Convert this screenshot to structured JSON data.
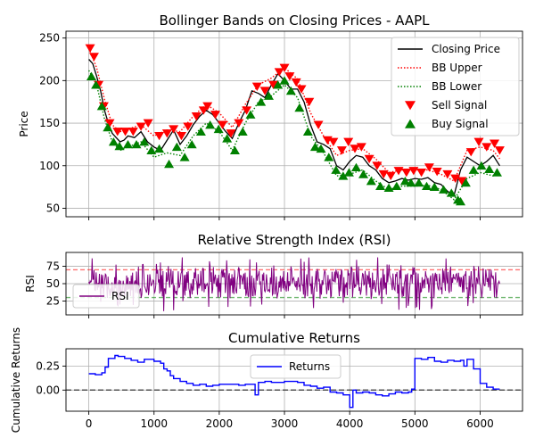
{
  "chart_data": [
    {
      "type": "line",
      "title": "Bollinger Bands on Closing Prices - AAPL",
      "xlabel": "",
      "ylabel": "Price",
      "xlim": [
        -350,
        6650
      ],
      "ylim": [
        40,
        258
      ],
      "x_ticks": [
        0,
        1000,
        2000,
        3000,
        4000,
        5000,
        6000
      ],
      "y_ticks": [
        50,
        100,
        150,
        200,
        250
      ],
      "grid": true,
      "legend_position": "top-right",
      "series": [
        {
          "name": "Closing Price",
          "color": "#000000",
          "style": "solid",
          "x": [
            0,
            60,
            120,
            180,
            240,
            300,
            360,
            420,
            480,
            540,
            600,
            700,
            800,
            900,
            1000,
            1100,
            1200,
            1300,
            1400,
            1500,
            1600,
            1700,
            1800,
            1900,
            2000,
            2100,
            2200,
            2300,
            2400,
            2500,
            2600,
            2700,
            2800,
            2900,
            3000,
            3100,
            3200,
            3300,
            3400,
            3500,
            3600,
            3700,
            3800,
            3900,
            4000,
            4100,
            4200,
            4300,
            4400,
            4500,
            4600,
            4700,
            4800,
            4900,
            5000,
            5100,
            5200,
            5300,
            5400,
            5500,
            5600,
            5700,
            5800,
            5900,
            6000,
            6100,
            6200,
            6300
          ],
          "y": [
            225,
            220,
            205,
            188,
            165,
            150,
            138,
            133,
            128,
            130,
            135,
            133,
            140,
            128,
            122,
            118,
            130,
            142,
            125,
            135,
            148,
            158,
            165,
            160,
            150,
            140,
            132,
            150,
            165,
            188,
            185,
            180,
            195,
            208,
            200,
            190,
            190,
            175,
            148,
            128,
            125,
            120,
            100,
            95,
            105,
            112,
            110,
            100,
            95,
            85,
            80,
            82,
            85,
            83,
            85,
            84,
            86,
            80,
            78,
            70,
            65,
            95,
            110,
            105,
            100,
            105,
            112,
            100
          ]
        },
        {
          "name": "BB Upper",
          "color": "#ff0000",
          "style": "dotted",
          "x": [
            0,
            120,
            240,
            360,
            480,
            600,
            800,
            1000,
            1200,
            1400,
            1600,
            1800,
            2000,
            2200,
            2400,
            2600,
            2800,
            3000,
            3200,
            3400,
            3600,
            3800,
            4000,
            4200,
            4400,
            4600,
            4800,
            5000,
            5200,
            5400,
            5600,
            5800,
            6000,
            6200,
            6300
          ],
          "y": [
            238,
            215,
            178,
            148,
            140,
            143,
            148,
            135,
            142,
            140,
            158,
            172,
            162,
            145,
            172,
            195,
            203,
            215,
            202,
            162,
            135,
            112,
            118,
            120,
            108,
            92,
            95,
            95,
            95,
            90,
            82,
            118,
            122,
            118,
            108
          ]
        },
        {
          "name": "BB Lower",
          "color": "#008000",
          "style": "dotted",
          "x": [
            0,
            120,
            240,
            360,
            480,
            600,
            800,
            1000,
            1200,
            1400,
            1600,
            1800,
            2000,
            2200,
            2400,
            2600,
            2800,
            3000,
            3200,
            3400,
            3600,
            3800,
            4000,
            4200,
            4400,
            4600,
            4800,
            5000,
            5200,
            5400,
            5600,
            5800,
            6000,
            6200,
            6300
          ],
          "y": [
            212,
            195,
            155,
            128,
            118,
            122,
            128,
            110,
            115,
            112,
            135,
            150,
            140,
            118,
            150,
            175,
            182,
            195,
            180,
            135,
            115,
            88,
            90,
            95,
            82,
            72,
            76,
            76,
            77,
            72,
            60,
            85,
            92,
            88,
            90
          ]
        },
        {
          "name": "Sell Signal",
          "color": "#ff0000",
          "marker": "triangle-down",
          "x": [
            20,
            80,
            150,
            230,
            320,
            440,
            560,
            680,
            800,
            910,
            1080,
            1200,
            1300,
            1420,
            1520,
            1650,
            1760,
            1820,
            1940,
            2050,
            2180,
            2300,
            2420,
            2580,
            2700,
            2830,
            2920,
            3000,
            3080,
            3180,
            3260,
            3380,
            3520,
            3660,
            3750,
            3880,
            3980,
            4080,
            4180,
            4300,
            4420,
            4520,
            4630,
            4750,
            4870,
            4980,
            5100,
            5220,
            5340,
            5500,
            5620,
            5720,
            5860,
            5980,
            6100,
            6220,
            6300
          ],
          "y": [
            238,
            228,
            195,
            170,
            150,
            140,
            140,
            140,
            146,
            150,
            135,
            138,
            143,
            135,
            146,
            158,
            165,
            170,
            160,
            148,
            138,
            150,
            165,
            193,
            188,
            195,
            210,
            215,
            205,
            198,
            190,
            175,
            148,
            130,
            128,
            118,
            128,
            120,
            122,
            108,
            100,
            90,
            88,
            94,
            92,
            94,
            92,
            98,
            93,
            90,
            85,
            82,
            116,
            128,
            122,
            126,
            118
          ]
        },
        {
          "name": "Buy Signal",
          "color": "#008000",
          "marker": "triangle-up",
          "x": [
            40,
            110,
            200,
            290,
            380,
            470,
            600,
            730,
            850,
            960,
            1080,
            1230,
            1350,
            1470,
            1580,
            1720,
            1860,
            1990,
            2120,
            2240,
            2360,
            2480,
            2640,
            2760,
            2900,
            3000,
            3100,
            3230,
            3360,
            3470,
            3560,
            3680,
            3790,
            3900,
            3990,
            4100,
            4210,
            4330,
            4470,
            4600,
            4720,
            4850,
            4940,
            5060,
            5180,
            5300,
            5440,
            5560,
            5660,
            5700,
            5780,
            5900,
            6020,
            6140,
            6260
          ],
          "y": [
            205,
            195,
            170,
            145,
            128,
            123,
            125,
            125,
            128,
            118,
            120,
            102,
            122,
            110,
            125,
            140,
            148,
            143,
            132,
            118,
            140,
            160,
            175,
            182,
            195,
            200,
            188,
            168,
            140,
            122,
            120,
            110,
            95,
            88,
            92,
            98,
            90,
            82,
            76,
            74,
            76,
            82,
            80,
            80,
            76,
            75,
            72,
            68,
            60,
            58,
            80,
            95,
            100,
            96,
            92
          ]
        }
      ]
    },
    {
      "type": "line",
      "title": "Relative Strength Index (RSI)",
      "xlabel": "",
      "ylabel": "RSI",
      "xlim": [
        -350,
        6650
      ],
      "ylim": [
        5,
        95
      ],
      "x_ticks": [
        0,
        1000,
        2000,
        3000,
        4000,
        5000,
        6000
      ],
      "y_ticks": [
        25,
        50,
        75
      ],
      "grid": true,
      "legend_position": "bottom-left",
      "reference_lines": [
        {
          "y": 70,
          "color": "#ff0000",
          "style": "dashed"
        },
        {
          "y": 30,
          "color": "#008000",
          "style": "dashed"
        }
      ],
      "series": [
        {
          "name": "RSI",
          "color": "#800080",
          "range_low": 10,
          "range_high": 88,
          "mean": 52,
          "x_start": 0,
          "x_end": 6300
        }
      ]
    },
    {
      "type": "line",
      "title": "Cumulative Returns",
      "xlabel": "",
      "ylabel": "Cumulative Returns",
      "xlim": [
        -350,
        6650
      ],
      "ylim": [
        -0.22,
        0.43
      ],
      "x_ticks": [
        0,
        1000,
        2000,
        3000,
        4000,
        5000,
        6000
      ],
      "y_ticks": [
        0.0,
        0.25
      ],
      "x_tick_labels": [
        "0",
        "1000",
        "2000",
        "3000",
        "4000",
        "5000",
        "6000"
      ],
      "y_tick_labels": [
        "0.00",
        "0.25"
      ],
      "grid": true,
      "legend_position": "top-center",
      "reference_lines": [
        {
          "y": 0.0,
          "color": "#000000",
          "style": "dashed"
        }
      ],
      "series": [
        {
          "name": "Returns",
          "color": "#0000ff",
          "x": [
            0,
            100,
            200,
            250,
            300,
            400,
            450,
            550,
            650,
            750,
            850,
            1000,
            1100,
            1150,
            1200,
            1250,
            1300,
            1400,
            1500,
            1600,
            1700,
            1800,
            1900,
            2000,
            2100,
            2200,
            2300,
            2400,
            2500,
            2550,
            2600,
            2700,
            2800,
            2900,
            3000,
            3100,
            3200,
            3300,
            3400,
            3500,
            3600,
            3700,
            3800,
            3900,
            4000,
            4050,
            4100,
            4200,
            4300,
            4400,
            4500,
            4600,
            4700,
            4800,
            4900,
            4950,
            5000,
            5100,
            5200,
            5300,
            5400,
            5500,
            5600,
            5700,
            5750,
            5800,
            5900,
            6000,
            6100,
            6200,
            6300
          ],
          "y": [
            0.17,
            0.16,
            0.18,
            0.24,
            0.33,
            0.36,
            0.35,
            0.33,
            0.31,
            0.29,
            0.32,
            0.3,
            0.28,
            0.22,
            0.2,
            0.15,
            0.12,
            0.09,
            0.07,
            0.05,
            0.06,
            0.04,
            0.05,
            0.06,
            0.06,
            0.06,
            0.05,
            0.06,
            0.06,
            -0.05,
            0.08,
            0.09,
            0.08,
            0.08,
            0.09,
            0.09,
            0.08,
            0.05,
            0.04,
            0.02,
            0.03,
            -0.02,
            -0.03,
            -0.05,
            -0.18,
            0.0,
            -0.03,
            -0.02,
            -0.03,
            -0.05,
            -0.06,
            -0.04,
            -0.02,
            -0.03,
            -0.02,
            0.01,
            0.33,
            0.32,
            0.34,
            0.3,
            0.29,
            0.31,
            0.3,
            0.31,
            0.25,
            0.32,
            0.22,
            0.07,
            0.03,
            0.01,
            0.01
          ]
        }
      ]
    }
  ]
}
